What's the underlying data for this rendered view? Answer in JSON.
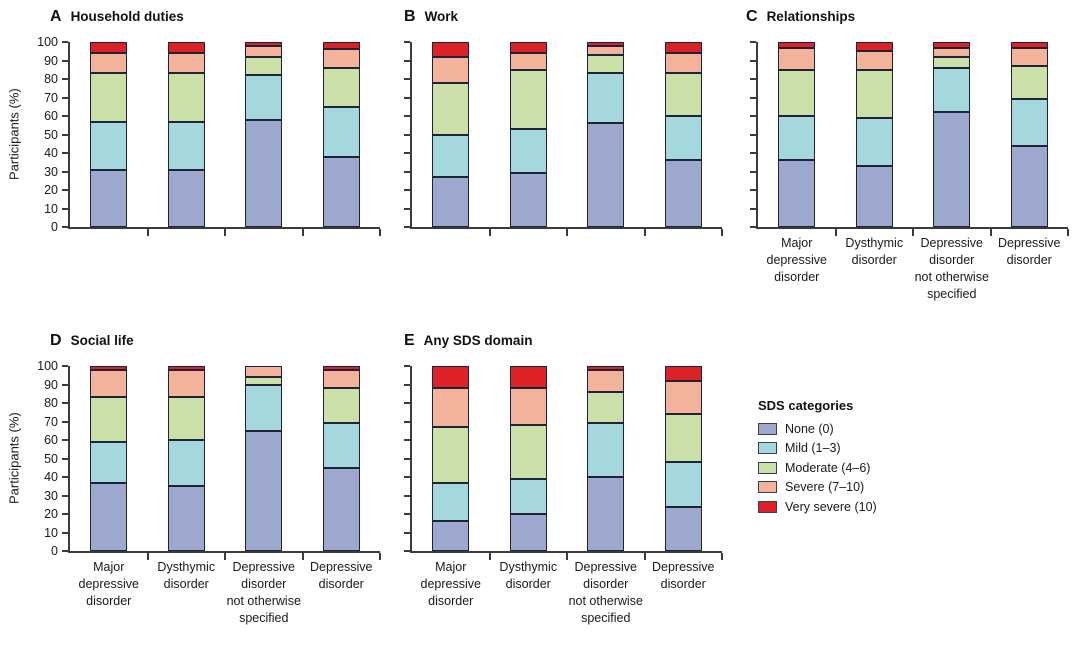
{
  "figure": {
    "y_axis_label": "Participants (%)",
    "y_ticks": [
      "0",
      "10",
      "20",
      "30",
      "40",
      "50",
      "60",
      "70",
      "80",
      "90",
      "100"
    ]
  },
  "legend": {
    "title": "SDS categories",
    "entries": [
      {
        "key": "none",
        "label": "None (0)",
        "color": "#9da8ce"
      },
      {
        "key": "mild",
        "label": "Mild (1–3)",
        "color": "#a5d8dc"
      },
      {
        "key": "moderate",
        "label": "Moderate (4–6)",
        "color": "#cbe0a9"
      },
      {
        "key": "severe",
        "label": "Severe (7–10)",
        "color": "#f3b29a"
      },
      {
        "key": "very-severe",
        "label": "Very severe (10)",
        "color": "#dc2227"
      }
    ]
  },
  "chart_data": {
    "type": "bar",
    "stacked": true,
    "units": "percent of participants",
    "ylabel": "Participants (%)",
    "ylim": [
      0,
      100
    ],
    "y_tick_step": 10,
    "grid": false,
    "legend_position": "right of panel E, below panel C",
    "stack_levels": [
      "None (0)",
      "Mild (1–3)",
      "Moderate (4–6)",
      "Severe (7–10)",
      "Very severe (10)"
    ],
    "categories": [
      "Major depressive disorder",
      "Dysthymic disorder",
      "Depressive disorder not otherwise specified",
      "Depressive disorder"
    ],
    "category_label_lines": [
      "Major\ndepressive\ndisorder",
      "Dysthymic\ndisorder",
      "Depressive\ndisorder\nnot otherwise\nspecified",
      "Depressive\ndisorder"
    ],
    "panels": [
      {
        "letter": "A",
        "title": "Household duties",
        "y_tick_labels_visible": true,
        "y_axis_title_visible": true,
        "x_labels_visible": false,
        "bars": [
          [
            31,
            26,
            26,
            11,
            6
          ],
          [
            31,
            26,
            26,
            11,
            6
          ],
          [
            58,
            24,
            10,
            6,
            2
          ],
          [
            38,
            27,
            21,
            10,
            4
          ]
        ]
      },
      {
        "letter": "B",
        "title": "Work",
        "y_tick_labels_visible": false,
        "y_axis_title_visible": false,
        "x_labels_visible": false,
        "bars": [
          [
            27,
            23,
            28,
            14,
            8
          ],
          [
            29,
            24,
            32,
            9,
            6
          ],
          [
            56,
            27,
            10,
            5,
            2
          ],
          [
            36,
            24,
            23,
            11,
            6
          ]
        ]
      },
      {
        "letter": "C",
        "title": "Relationships",
        "y_tick_labels_visible": false,
        "y_axis_title_visible": false,
        "x_labels_visible": true,
        "bars": [
          [
            36,
            24,
            25,
            12,
            3
          ],
          [
            33,
            26,
            26,
            10,
            5
          ],
          [
            62,
            24,
            6,
            5,
            3
          ],
          [
            44,
            25,
            18,
            10,
            3
          ]
        ]
      },
      {
        "letter": "D",
        "title": "Social life",
        "y_tick_labels_visible": true,
        "y_axis_title_visible": true,
        "x_labels_visible": true,
        "bars": [
          [
            37,
            22,
            24,
            15,
            2
          ],
          [
            35,
            25,
            23,
            15,
            2
          ],
          [
            65,
            25,
            4,
            6,
            0
          ],
          [
            45,
            24,
            19,
            10,
            2
          ]
        ]
      },
      {
        "letter": "E",
        "title": "Any SDS domain",
        "y_tick_labels_visible": false,
        "y_axis_title_visible": false,
        "x_labels_visible": true,
        "bars": [
          [
            16,
            21,
            30,
            21,
            12
          ],
          [
            20,
            19,
            29,
            20,
            12
          ],
          [
            40,
            29,
            17,
            12,
            2
          ],
          [
            24,
            24,
            26,
            18,
            8
          ]
        ]
      }
    ]
  }
}
